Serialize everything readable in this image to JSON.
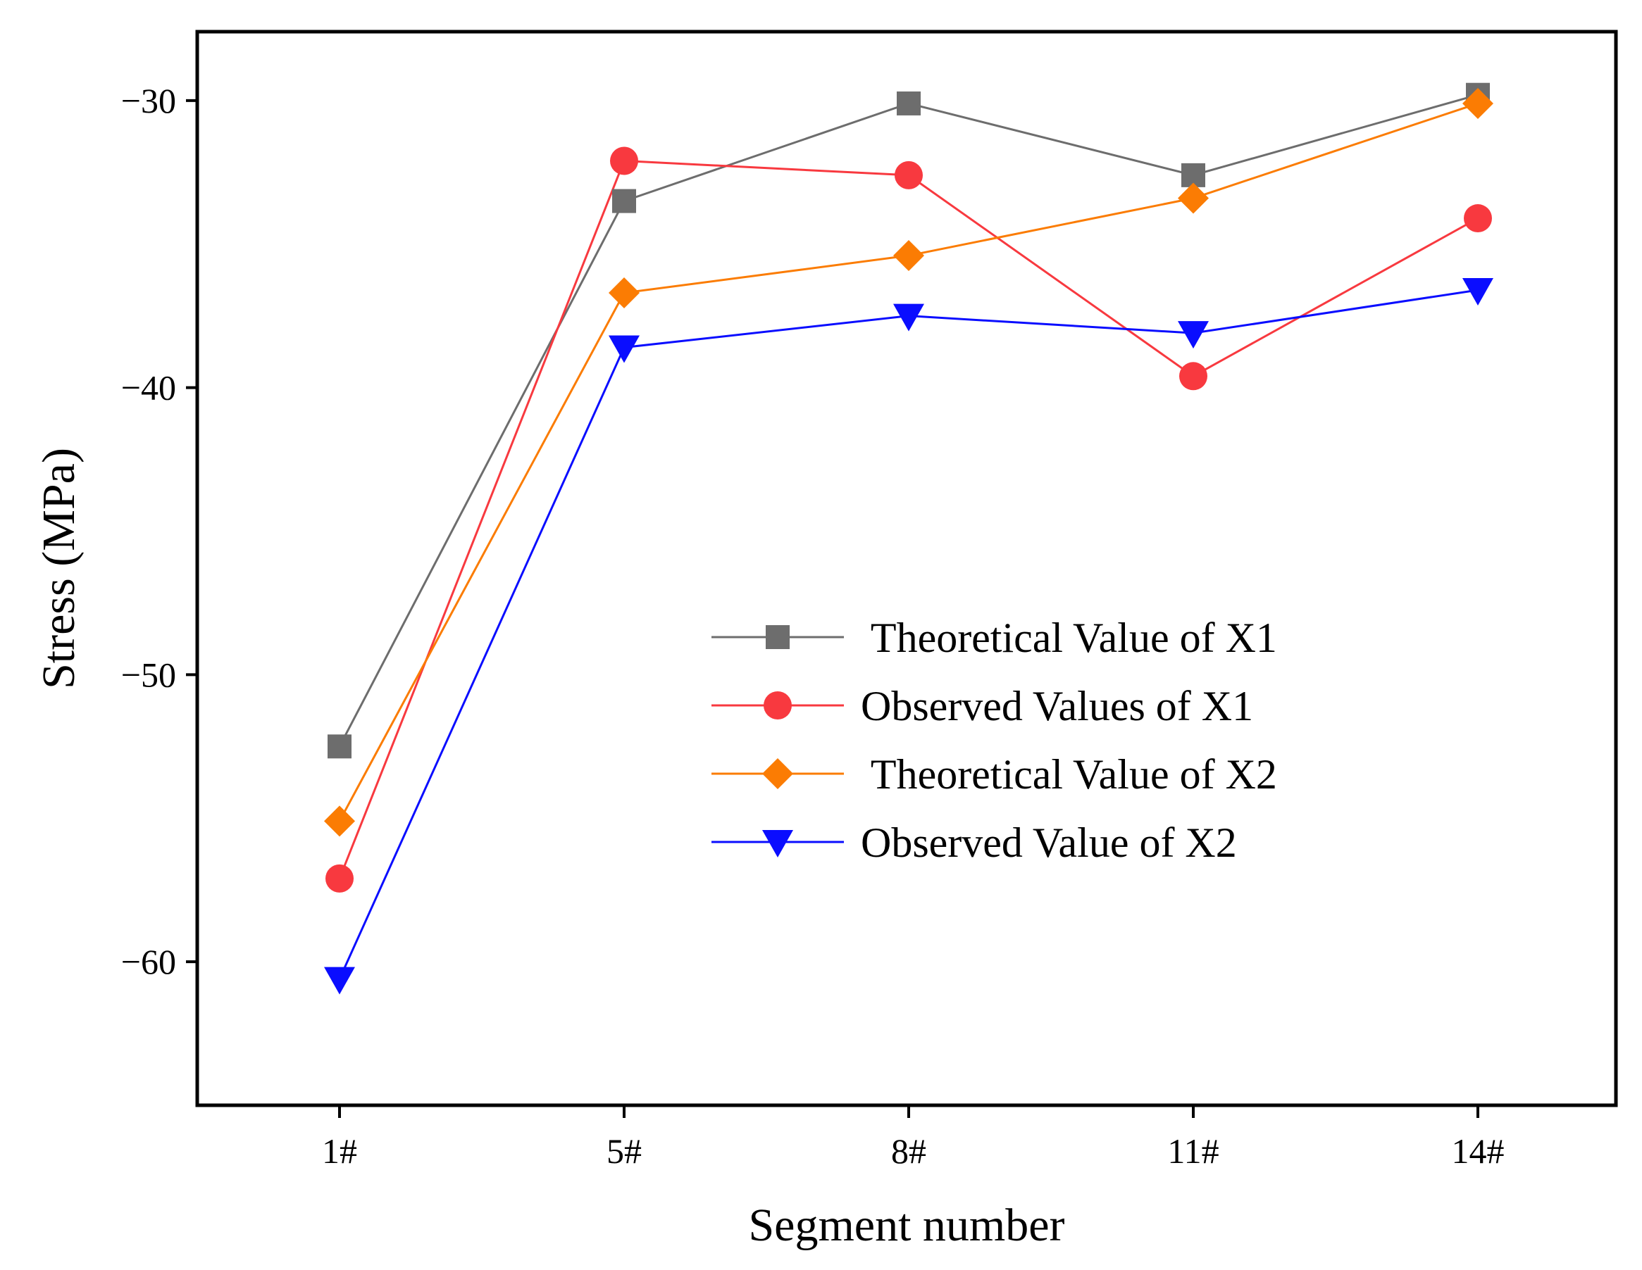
{
  "chart_data": {
    "type": "line",
    "categories": [
      "1#",
      "5#",
      "8#",
      "11#",
      "14#"
    ],
    "xlabel": "Segment number",
    "ylabel": "Stress (MPa)",
    "ylim": [
      -65,
      -27.6
    ],
    "yticks": [
      -30,
      -40,
      -50,
      -60
    ],
    "ytick_labels": [
      "−30",
      "−40",
      "−50",
      "−60"
    ],
    "legend_position": "center-right",
    "series": [
      {
        "name": " Theoretical Value of X1",
        "color": "#6d6d6d",
        "marker": "square",
        "values": [
          -52.5,
          -33.5,
          -30.1,
          -32.6,
          -29.8
        ]
      },
      {
        "name": "Observed Values of X1",
        "color": "#f8393f",
        "marker": "circle",
        "values": [
          -57.1,
          -32.1,
          -32.6,
          -39.6,
          -34.1
        ]
      },
      {
        "name": " Theoretical Value of X2",
        "color": "#fb7c03",
        "marker": "diamond",
        "values": [
          -55.1,
          -36.7,
          -35.4,
          -33.4,
          -30.1
        ]
      },
      {
        "name": "Observed Value of X2",
        "color": "#0a0dff",
        "marker": "triangle-down",
        "values": [
          -60.6,
          -38.6,
          -37.5,
          -38.1,
          -36.6
        ]
      }
    ]
  }
}
